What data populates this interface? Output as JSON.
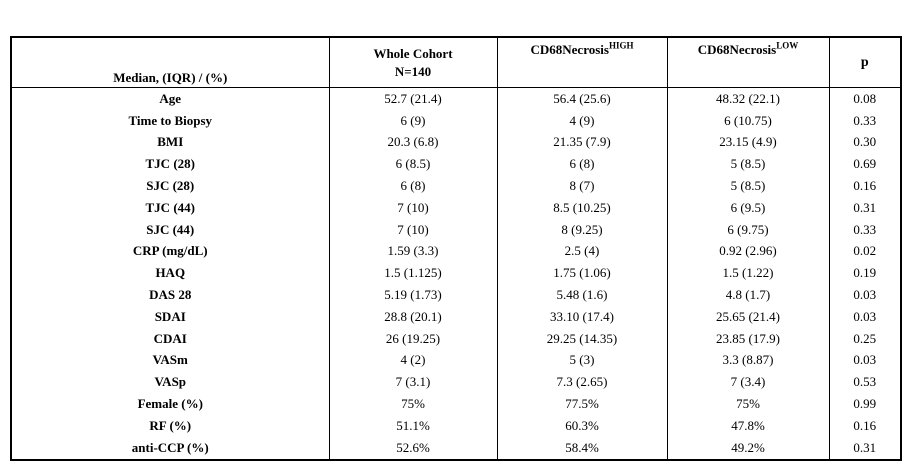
{
  "header": {
    "col0_label": "Median, (IQR) / (%)",
    "col1_line1": "Whole Cohort",
    "col1_line2": "N=140",
    "col2_base": "CD68Necrosis",
    "col2_sup": "HIGH",
    "col3_base": "CD68Necrosis",
    "col3_sup": "LOW",
    "col4_label": "p"
  },
  "chart_data": {
    "type": "table",
    "columns": [
      "Median, (IQR) / (%)",
      "Whole Cohort N=140",
      "CD68Necrosis HIGH",
      "CD68Necrosis LOW",
      "p"
    ],
    "rows": [
      [
        "Age",
        "52.7 (21.4)",
        "56.4 (25.6)",
        "48.32 (22.1)",
        "0.08"
      ],
      [
        "Time to Biopsy",
        "6 (9)",
        "4 (9)",
        "6 (10.75)",
        "0.33"
      ],
      [
        "BMI",
        "20.3 (6.8)",
        "21.35 (7.9)",
        "23.15 (4.9)",
        "0.30"
      ],
      [
        "TJC (28)",
        "6 (8.5)",
        "6 (8)",
        "5 (8.5)",
        "0.69"
      ],
      [
        "SJC (28)",
        "6 (8)",
        "8 (7)",
        "5 (8.5)",
        "0.16"
      ],
      [
        "TJC (44)",
        "7 (10)",
        "8.5 (10.25)",
        "6 (9.5)",
        "0.31"
      ],
      [
        "SJC (44)",
        "7 (10)",
        "8 (9.25)",
        "6 (9.75)",
        "0.33"
      ],
      [
        "CRP (mg/dL)",
        "1.59 (3.3)",
        "2.5 (4)",
        "0.92 (2.96)",
        "0.02"
      ],
      [
        "HAQ",
        "1.5 (1.125)",
        "1.75 (1.06)",
        "1.5 (1.22)",
        "0.19"
      ],
      [
        "DAS 28",
        "5.19 (1.73)",
        "5.48 (1.6)",
        "4.8 (1.7)",
        "0.03"
      ],
      [
        "SDAI",
        "28.8 (20.1)",
        "33.10 (17.4)",
        "25.65 (21.4)",
        "0.03"
      ],
      [
        "CDAI",
        "26 (19.25)",
        "29.25 (14.35)",
        "23.85 (17.9)",
        "0.25"
      ],
      [
        "VASm",
        "4 (2)",
        "5 (3)",
        "3.3 (8.87)",
        "0.03"
      ],
      [
        "VASp",
        "7 (3.1)",
        "7.3 (2.65)",
        "7 (3.4)",
        "0.53"
      ],
      [
        "Female (%)",
        "75%",
        "77.5%",
        "75%",
        "0.99"
      ],
      [
        "RF (%)",
        "51.1%",
        "60.3%",
        "47.8%",
        "0.16"
      ],
      [
        "anti-CCP (%)",
        "52.6%",
        "58.4%",
        "49.2%",
        "0.31"
      ]
    ]
  }
}
